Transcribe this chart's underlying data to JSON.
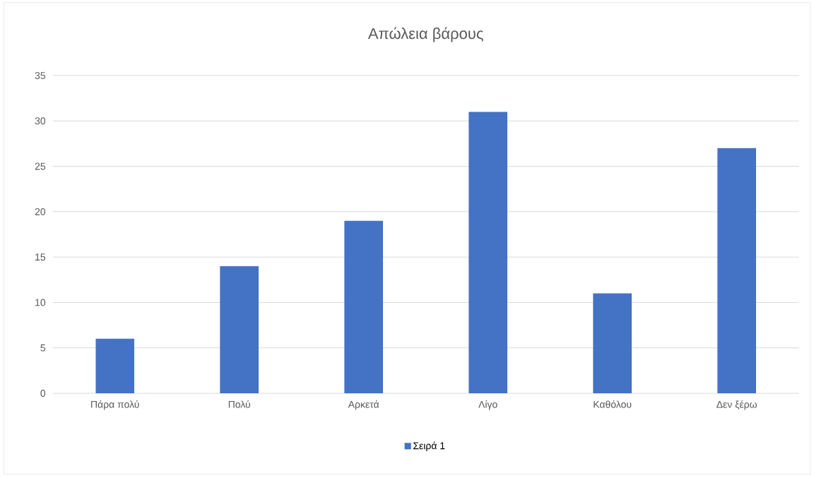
{
  "chart_data": {
    "type": "bar",
    "title": "Απώλεια βάρους",
    "categories": [
      "Πάρα πολύ",
      "Πολύ",
      "Αρκετά",
      "Λίγο",
      "Καθόλου",
      "Δεν ξέρω"
    ],
    "series": [
      {
        "name": "Σειρά 1",
        "color": "#4472c4",
        "values": [
          6,
          14,
          19,
          31,
          11,
          27
        ]
      }
    ],
    "ylim": [
      0,
      35
    ],
    "yticks": [
      0,
      5,
      10,
      15,
      20,
      25,
      30,
      35
    ],
    "grid": "y",
    "legend": "bottom"
  }
}
